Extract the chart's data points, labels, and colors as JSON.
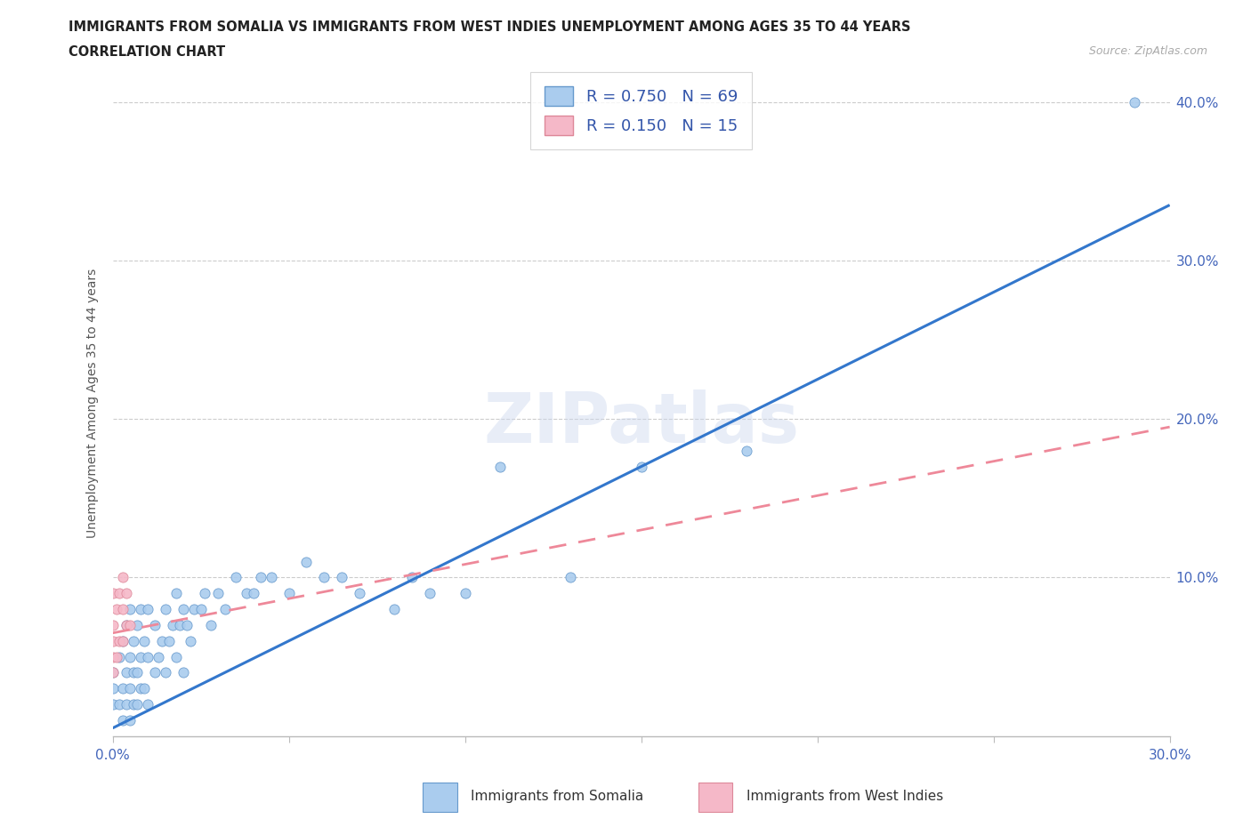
{
  "title_line1": "IMMIGRANTS FROM SOMALIA VS IMMIGRANTS FROM WEST INDIES UNEMPLOYMENT AMONG AGES 35 TO 44 YEARS",
  "title_line2": "CORRELATION CHART",
  "source": "Source: ZipAtlas.com",
  "ylabel": "Unemployment Among Ages 35 to 44 years",
  "xlim": [
    0.0,
    0.3
  ],
  "ylim": [
    0.0,
    0.42
  ],
  "somalia_color": "#aaccee",
  "somalia_edge_color": "#6699cc",
  "west_indies_color": "#f5b8c8",
  "west_indies_edge_color": "#dd8899",
  "somalia_line_color": "#3377cc",
  "west_indies_line_color": "#ee8899",
  "R_somalia": 0.75,
  "N_somalia": 69,
  "R_west_indies": 0.15,
  "N_west_indies": 15,
  "somalia_line_x": [
    0.0,
    0.3
  ],
  "somalia_line_y": [
    0.005,
    0.335
  ],
  "west_indies_line_x": [
    0.0,
    0.3
  ],
  "west_indies_line_y": [
    0.065,
    0.195
  ],
  "somalia_x": [
    0.0,
    0.0,
    0.0,
    0.002,
    0.002,
    0.003,
    0.003,
    0.003,
    0.004,
    0.004,
    0.004,
    0.005,
    0.005,
    0.005,
    0.005,
    0.006,
    0.006,
    0.006,
    0.007,
    0.007,
    0.007,
    0.008,
    0.008,
    0.008,
    0.009,
    0.009,
    0.01,
    0.01,
    0.01,
    0.012,
    0.012,
    0.013,
    0.014,
    0.015,
    0.015,
    0.016,
    0.017,
    0.018,
    0.018,
    0.019,
    0.02,
    0.02,
    0.021,
    0.022,
    0.023,
    0.025,
    0.026,
    0.028,
    0.03,
    0.032,
    0.035,
    0.038,
    0.04,
    0.042,
    0.045,
    0.05,
    0.055,
    0.06,
    0.065,
    0.07,
    0.08,
    0.085,
    0.09,
    0.1,
    0.11,
    0.13,
    0.15,
    0.18,
    0.29
  ],
  "somalia_y": [
    0.02,
    0.03,
    0.04,
    0.02,
    0.05,
    0.01,
    0.03,
    0.06,
    0.02,
    0.04,
    0.07,
    0.01,
    0.03,
    0.05,
    0.08,
    0.02,
    0.04,
    0.06,
    0.02,
    0.04,
    0.07,
    0.03,
    0.05,
    0.08,
    0.03,
    0.06,
    0.02,
    0.05,
    0.08,
    0.04,
    0.07,
    0.05,
    0.06,
    0.04,
    0.08,
    0.06,
    0.07,
    0.05,
    0.09,
    0.07,
    0.04,
    0.08,
    0.07,
    0.06,
    0.08,
    0.08,
    0.09,
    0.07,
    0.09,
    0.08,
    0.1,
    0.09,
    0.09,
    0.1,
    0.1,
    0.09,
    0.11,
    0.1,
    0.1,
    0.09,
    0.08,
    0.1,
    0.09,
    0.09,
    0.17,
    0.1,
    0.17,
    0.18,
    0.4
  ],
  "west_indies_x": [
    0.0,
    0.0,
    0.0,
    0.0,
    0.0,
    0.001,
    0.001,
    0.002,
    0.002,
    0.003,
    0.003,
    0.003,
    0.004,
    0.004,
    0.005
  ],
  "west_indies_y": [
    0.04,
    0.05,
    0.06,
    0.07,
    0.09,
    0.05,
    0.08,
    0.06,
    0.09,
    0.06,
    0.08,
    0.1,
    0.07,
    0.09,
    0.07
  ]
}
